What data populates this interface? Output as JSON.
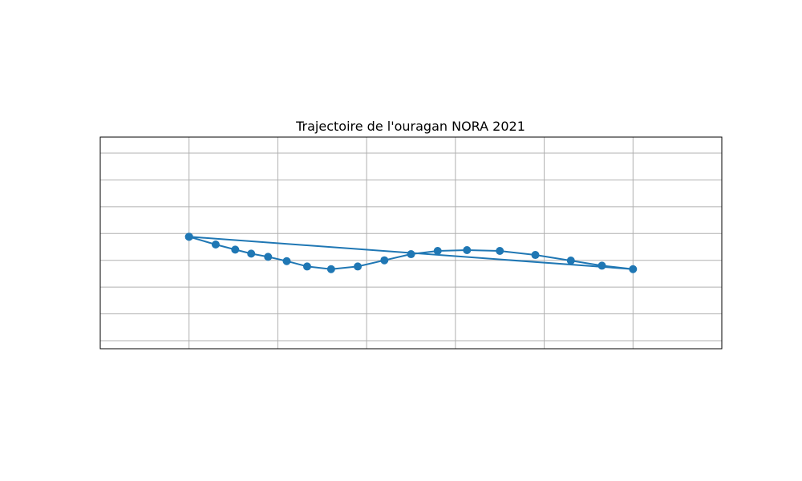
{
  "chart_data": {
    "type": "line",
    "title": "Trajectoire de l'ouragan NORA 2021",
    "xlabel": "",
    "ylabel": "",
    "xlim": [
      -1,
      6
    ],
    "ylim": [
      -2.65,
      5.25
    ],
    "xticks": [
      0,
      1,
      2,
      3,
      4,
      5
    ],
    "yticks": [
      -2.35,
      -1.35,
      -0.35,
      0.65,
      1.65,
      2.65,
      3.65,
      4.65
    ],
    "grid": true,
    "axis_labels_visible": false,
    "series": [
      {
        "color": "#1f77b4",
        "marker": "circle",
        "x": [
          0,
          0.3,
          0.52,
          0.7,
          0.89,
          1.1,
          1.33,
          1.6,
          1.9,
          2.2,
          2.5,
          2.8,
          3.13,
          3.5,
          3.9,
          4.3,
          4.65,
          5,
          0
        ],
        "y": [
          1.53,
          1.24,
          1.05,
          0.9,
          0.78,
          0.62,
          0.42,
          0.32,
          0.42,
          0.65,
          0.88,
          1.0,
          1.03,
          1.0,
          0.85,
          0.64,
          0.45,
          0.32,
          1.53
        ]
      }
    ]
  }
}
